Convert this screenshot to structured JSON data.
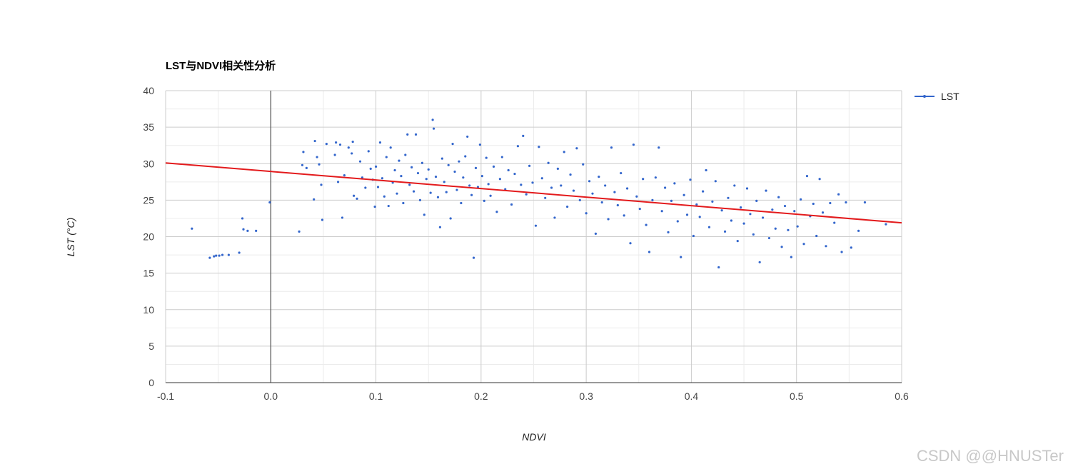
{
  "chart_data": {
    "type": "scatter",
    "title": "LST与NDVI相关性分析",
    "xlabel": "NDVI",
    "ylabel": "LST (°C)",
    "xlim": [
      -0.1,
      0.6
    ],
    "ylim": [
      0,
      40
    ],
    "x_ticks": [
      "-0.1",
      "0.0",
      "0.1",
      "0.2",
      "0.3",
      "0.4",
      "0.5",
      "0.6"
    ],
    "y_ticks": [
      "0",
      "5",
      "10",
      "15",
      "20",
      "25",
      "30",
      "35",
      "40"
    ],
    "grid": true,
    "legend": {
      "position": "right",
      "entries": [
        "LST"
      ]
    },
    "colors": {
      "points": "#3366cc",
      "trendline": "#e31a1c",
      "grid": "#cccccc",
      "zero_line": "#333333"
    },
    "trendline": {
      "type": "linear",
      "points": [
        [
          -0.1,
          30.1
        ],
        [
          0.6,
          21.9
        ]
      ]
    },
    "series": [
      {
        "name": "LST",
        "points": [
          [
            -0.075,
            21.1
          ],
          [
            -0.058,
            17.1
          ],
          [
            -0.054,
            17.3
          ],
          [
            -0.052,
            17.4
          ],
          [
            -0.049,
            17.4
          ],
          [
            -0.046,
            17.5
          ],
          [
            -0.04,
            17.5
          ],
          [
            -0.03,
            17.8
          ],
          [
            -0.027,
            22.5
          ],
          [
            -0.026,
            21.0
          ],
          [
            -0.022,
            20.8
          ],
          [
            -0.014,
            20.8
          ],
          [
            -0.001,
            24.7
          ],
          [
            0.027,
            20.7
          ],
          [
            0.03,
            29.8
          ],
          [
            0.031,
            31.6
          ],
          [
            0.034,
            29.4
          ],
          [
            0.041,
            25.1
          ],
          [
            0.042,
            33.1
          ],
          [
            0.044,
            30.9
          ],
          [
            0.046,
            29.9
          ],
          [
            0.048,
            27.1
          ],
          [
            0.049,
            22.3
          ],
          [
            0.053,
            32.7
          ],
          [
            0.061,
            31.2
          ],
          [
            0.062,
            32.9
          ],
          [
            0.064,
            27.5
          ],
          [
            0.066,
            32.6
          ],
          [
            0.068,
            22.6
          ],
          [
            0.07,
            28.4
          ],
          [
            0.074,
            32.2
          ],
          [
            0.077,
            31.4
          ],
          [
            0.078,
            33.0
          ],
          [
            0.079,
            25.6
          ],
          [
            0.082,
            25.2
          ],
          [
            0.085,
            30.3
          ],
          [
            0.087,
            28.1
          ],
          [
            0.09,
            26.7
          ],
          [
            0.093,
            31.7
          ],
          [
            0.095,
            29.3
          ],
          [
            0.097,
            27.8
          ],
          [
            0.099,
            24.1
          ],
          [
            0.1,
            29.6
          ],
          [
            0.102,
            26.8
          ],
          [
            0.104,
            32.9
          ],
          [
            0.106,
            28.0
          ],
          [
            0.108,
            25.5
          ],
          [
            0.11,
            30.9
          ],
          [
            0.112,
            24.2
          ],
          [
            0.114,
            32.2
          ],
          [
            0.116,
            27.4
          ],
          [
            0.118,
            29.1
          ],
          [
            0.12,
            25.9
          ],
          [
            0.122,
            30.4
          ],
          [
            0.124,
            28.3
          ],
          [
            0.126,
            24.6
          ],
          [
            0.128,
            31.2
          ],
          [
            0.13,
            34.0
          ],
          [
            0.132,
            27.1
          ],
          [
            0.134,
            29.5
          ],
          [
            0.136,
            26.2
          ],
          [
            0.138,
            34.0
          ],
          [
            0.14,
            28.7
          ],
          [
            0.142,
            25.0
          ],
          [
            0.144,
            30.1
          ],
          [
            0.146,
            23.0
          ],
          [
            0.148,
            27.9
          ],
          [
            0.15,
            29.2
          ],
          [
            0.152,
            26.0
          ],
          [
            0.154,
            36.0
          ],
          [
            0.155,
            34.8
          ],
          [
            0.157,
            28.2
          ],
          [
            0.159,
            25.4
          ],
          [
            0.161,
            21.3
          ],
          [
            0.163,
            30.7
          ],
          [
            0.165,
            27.5
          ],
          [
            0.167,
            26.1
          ],
          [
            0.169,
            29.8
          ],
          [
            0.171,
            22.5
          ],
          [
            0.173,
            32.7
          ],
          [
            0.175,
            28.9
          ],
          [
            0.177,
            26.4
          ],
          [
            0.179,
            30.3
          ],
          [
            0.181,
            24.6
          ],
          [
            0.183,
            28.1
          ],
          [
            0.185,
            31.0
          ],
          [
            0.187,
            33.7
          ],
          [
            0.189,
            27.0
          ],
          [
            0.191,
            25.7
          ],
          [
            0.193,
            17.1
          ],
          [
            0.195,
            29.4
          ],
          [
            0.197,
            26.8
          ],
          [
            0.199,
            32.6
          ],
          [
            0.201,
            28.3
          ],
          [
            0.203,
            24.9
          ],
          [
            0.205,
            30.8
          ],
          [
            0.207,
            27.2
          ],
          [
            0.209,
            25.6
          ],
          [
            0.212,
            29.6
          ],
          [
            0.215,
            23.4
          ],
          [
            0.218,
            27.9
          ],
          [
            0.22,
            30.9
          ],
          [
            0.223,
            26.5
          ],
          [
            0.226,
            29.1
          ],
          [
            0.229,
            24.4
          ],
          [
            0.232,
            28.6
          ],
          [
            0.235,
            32.4
          ],
          [
            0.238,
            27.1
          ],
          [
            0.24,
            33.8
          ],
          [
            0.243,
            25.8
          ],
          [
            0.246,
            29.7
          ],
          [
            0.249,
            27.4
          ],
          [
            0.252,
            21.5
          ],
          [
            0.255,
            32.3
          ],
          [
            0.258,
            28.0
          ],
          [
            0.261,
            25.3
          ],
          [
            0.264,
            30.1
          ],
          [
            0.267,
            26.7
          ],
          [
            0.27,
            22.6
          ],
          [
            0.273,
            29.3
          ],
          [
            0.276,
            27.0
          ],
          [
            0.279,
            31.6
          ],
          [
            0.282,
            24.1
          ],
          [
            0.285,
            28.5
          ],
          [
            0.288,
            26.3
          ],
          [
            0.291,
            32.1
          ],
          [
            0.294,
            25.0
          ],
          [
            0.297,
            29.9
          ],
          [
            0.3,
            23.2
          ],
          [
            0.303,
            27.6
          ],
          [
            0.306,
            25.9
          ],
          [
            0.309,
            20.4
          ],
          [
            0.312,
            28.2
          ],
          [
            0.315,
            24.7
          ],
          [
            0.318,
            27.0
          ],
          [
            0.321,
            22.4
          ],
          [
            0.324,
            32.2
          ],
          [
            0.327,
            26.1
          ],
          [
            0.33,
            24.3
          ],
          [
            0.333,
            28.7
          ],
          [
            0.336,
            22.9
          ],
          [
            0.339,
            26.6
          ],
          [
            0.342,
            19.1
          ],
          [
            0.345,
            32.6
          ],
          [
            0.348,
            25.5
          ],
          [
            0.351,
            23.8
          ],
          [
            0.354,
            27.9
          ],
          [
            0.357,
            21.6
          ],
          [
            0.36,
            17.9
          ],
          [
            0.363,
            25.0
          ],
          [
            0.366,
            28.1
          ],
          [
            0.369,
            32.2
          ],
          [
            0.372,
            23.5
          ],
          [
            0.375,
            26.7
          ],
          [
            0.378,
            20.6
          ],
          [
            0.381,
            24.9
          ],
          [
            0.384,
            27.3
          ],
          [
            0.387,
            22.1
          ],
          [
            0.39,
            17.2
          ],
          [
            0.393,
            25.7
          ],
          [
            0.396,
            23.0
          ],
          [
            0.399,
            27.8
          ],
          [
            0.402,
            20.1
          ],
          [
            0.405,
            24.4
          ],
          [
            0.408,
            22.7
          ],
          [
            0.411,
            26.2
          ],
          [
            0.414,
            29.1
          ],
          [
            0.417,
            21.3
          ],
          [
            0.42,
            24.8
          ],
          [
            0.423,
            27.6
          ],
          [
            0.426,
            15.8
          ],
          [
            0.429,
            23.6
          ],
          [
            0.432,
            20.7
          ],
          [
            0.435,
            25.3
          ],
          [
            0.438,
            22.2
          ],
          [
            0.441,
            27.0
          ],
          [
            0.444,
            19.4
          ],
          [
            0.447,
            24.0
          ],
          [
            0.45,
            21.8
          ],
          [
            0.453,
            26.6
          ],
          [
            0.456,
            23.1
          ],
          [
            0.459,
            20.3
          ],
          [
            0.462,
            24.9
          ],
          [
            0.465,
            16.5
          ],
          [
            0.468,
            22.6
          ],
          [
            0.471,
            26.3
          ],
          [
            0.474,
            19.8
          ],
          [
            0.477,
            23.7
          ],
          [
            0.48,
            21.1
          ],
          [
            0.483,
            25.4
          ],
          [
            0.486,
            18.6
          ],
          [
            0.489,
            24.2
          ],
          [
            0.492,
            20.9
          ],
          [
            0.495,
            17.2
          ],
          [
            0.498,
            23.5
          ],
          [
            0.501,
            21.4
          ],
          [
            0.504,
            25.1
          ],
          [
            0.507,
            19.0
          ],
          [
            0.51,
            28.3
          ],
          [
            0.513,
            22.8
          ],
          [
            0.516,
            24.5
          ],
          [
            0.519,
            20.1
          ],
          [
            0.522,
            27.9
          ],
          [
            0.525,
            23.3
          ],
          [
            0.528,
            18.7
          ],
          [
            0.532,
            24.6
          ],
          [
            0.536,
            21.9
          ],
          [
            0.54,
            25.8
          ],
          [
            0.543,
            17.9
          ],
          [
            0.547,
            24.7
          ],
          [
            0.552,
            18.5
          ],
          [
            0.559,
            20.8
          ],
          [
            0.565,
            24.7
          ],
          [
            0.585,
            21.7
          ]
        ]
      }
    ]
  },
  "watermark": "CSDN @@HNUSTer"
}
